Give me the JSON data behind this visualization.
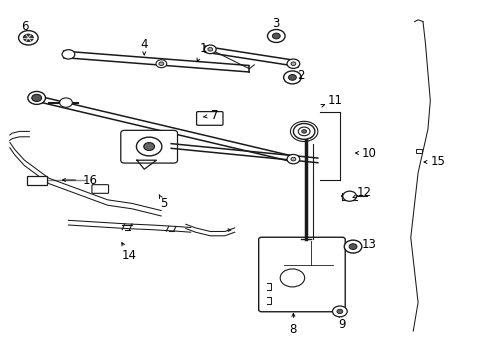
{
  "bg_color": "#ffffff",
  "line_color": "#1a1a1a",
  "label_color": "#000000",
  "figsize": [
    4.89,
    3.6
  ],
  "dpi": 100,
  "labels_pos": {
    "1": [
      0.415,
      0.865,
      0.4,
      0.82
    ],
    "2": [
      0.615,
      0.79,
      0.595,
      0.785
    ],
    "3": [
      0.565,
      0.935,
      0.565,
      0.905
    ],
    "4": [
      0.295,
      0.875,
      0.295,
      0.845
    ],
    "5": [
      0.335,
      0.435,
      0.325,
      0.46
    ],
    "6": [
      0.05,
      0.925,
      0.065,
      0.895
    ],
    "7": [
      0.44,
      0.68,
      0.415,
      0.675
    ],
    "8": [
      0.6,
      0.085,
      0.6,
      0.14
    ],
    "9": [
      0.7,
      0.1,
      0.695,
      0.13
    ],
    "10": [
      0.755,
      0.575,
      0.725,
      0.575
    ],
    "11": [
      0.685,
      0.72,
      0.665,
      0.71
    ],
    "12": [
      0.745,
      0.465,
      0.72,
      0.45
    ],
    "13": [
      0.755,
      0.32,
      0.725,
      0.315
    ],
    "14": [
      0.265,
      0.29,
      0.245,
      0.335
    ],
    "15": [
      0.895,
      0.55,
      0.865,
      0.55
    ],
    "16": [
      0.185,
      0.5,
      0.12,
      0.5
    ]
  }
}
